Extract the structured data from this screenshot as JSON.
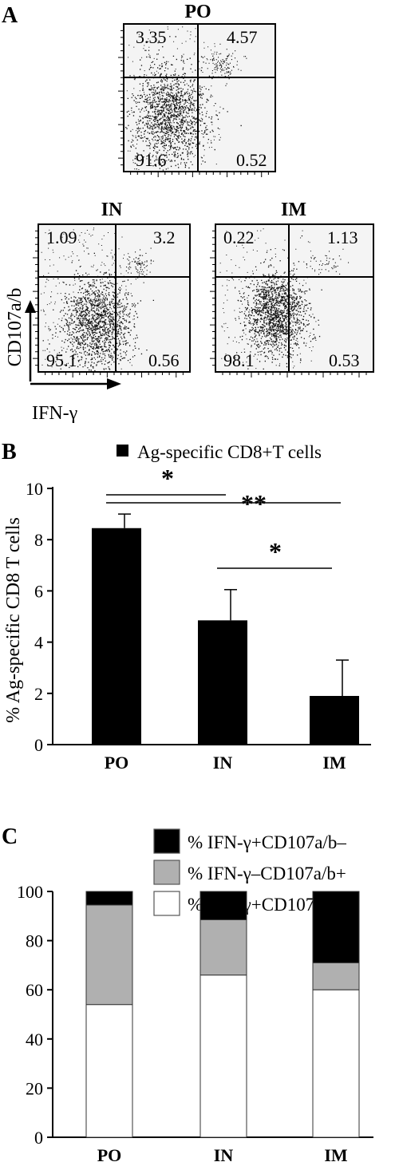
{
  "panel_a": {
    "label": "A",
    "y_axis_label": "CD107a/b",
    "x_axis_label": "IFN-γ",
    "plots": [
      {
        "title": "PO",
        "quadrants": {
          "upper_left": "3.35",
          "upper_right": "4.57",
          "lower_left": "91.6",
          "lower_right": "0.52"
        }
      },
      {
        "title": "IN",
        "quadrants": {
          "upper_left": "1.09",
          "upper_right": "3.2",
          "lower_left": "95.1",
          "lower_right": "0.56"
        }
      },
      {
        "title": "IM",
        "quadrants": {
          "upper_left": "0.22",
          "upper_right": "1.13",
          "lower_left": "98.1",
          "lower_right": "0.53"
        }
      }
    ]
  },
  "chart_data": [
    {
      "panel": "B",
      "type": "bar",
      "categories": [
        "PO",
        "IN",
        "IM"
      ],
      "series": [
        {
          "name": "Ag-specific CD8+T cells",
          "values": [
            8.45,
            4.85,
            1.9
          ],
          "error": [
            0.55,
            1.2,
            1.4
          ],
          "color": "#000000"
        }
      ],
      "ylabel": "% Ag-specific CD8 T cells",
      "ylim": [
        0,
        10
      ],
      "yticks": [
        "0",
        "2",
        "4",
        "6",
        "8",
        "10"
      ],
      "legend_position": "top-right",
      "significance": [
        {
          "from": "PO",
          "to": "IN",
          "mark": "*"
        },
        {
          "from": "PO",
          "to": "IM",
          "mark": "**"
        },
        {
          "from": "IN",
          "to": "IM",
          "mark": "*"
        }
      ]
    },
    {
      "panel": "C",
      "type": "bar",
      "stacked": true,
      "categories": [
        "PO",
        "IN",
        "IM"
      ],
      "series": [
        {
          "name": "% IFN-γ+CD107a/b+",
          "values": [
            54,
            66,
            60
          ],
          "color": "#ffffff"
        },
        {
          "name": "% IFN-γ–CD107a/b+",
          "values": [
            40.5,
            22.5,
            11
          ],
          "color": "#b0b0b0"
        },
        {
          "name": "% IFN-γ+CD107a/b–",
          "values": [
            5.5,
            11.5,
            29
          ],
          "color": "#000000"
        }
      ],
      "ylim": [
        0,
        100
      ],
      "yticks": [
        "0",
        "20",
        "40",
        "60",
        "80",
        "100"
      ],
      "legend_position": "top-right"
    }
  ]
}
